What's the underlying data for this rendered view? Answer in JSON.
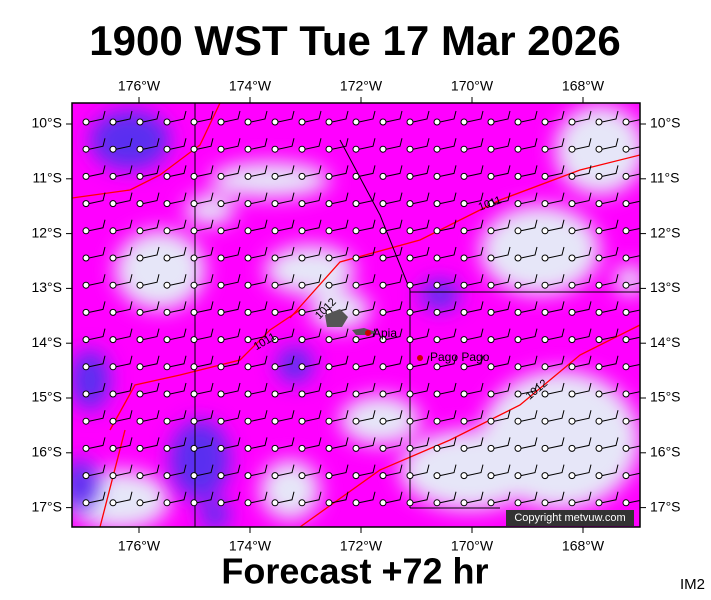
{
  "header": {
    "title": "1900 WST Tue 17 Mar 2026"
  },
  "map": {
    "lon_labels": [
      "176°W",
      "174°W",
      "172°W",
      "170°W",
      "168°W"
    ],
    "lat_labels": [
      "10°S",
      "11°S",
      "12°S",
      "13°S",
      "14°S",
      "15°S",
      "16°S",
      "17°S"
    ],
    "places": [
      "Apia",
      "Pago Pago"
    ],
    "isobar_labels": [
      "1011",
      "1012",
      "1011",
      "1012"
    ],
    "copyright": "Copyright metvuw.com"
  },
  "footer": {
    "forecast": "Forecast +72 hr",
    "image_id": "IM2"
  }
}
